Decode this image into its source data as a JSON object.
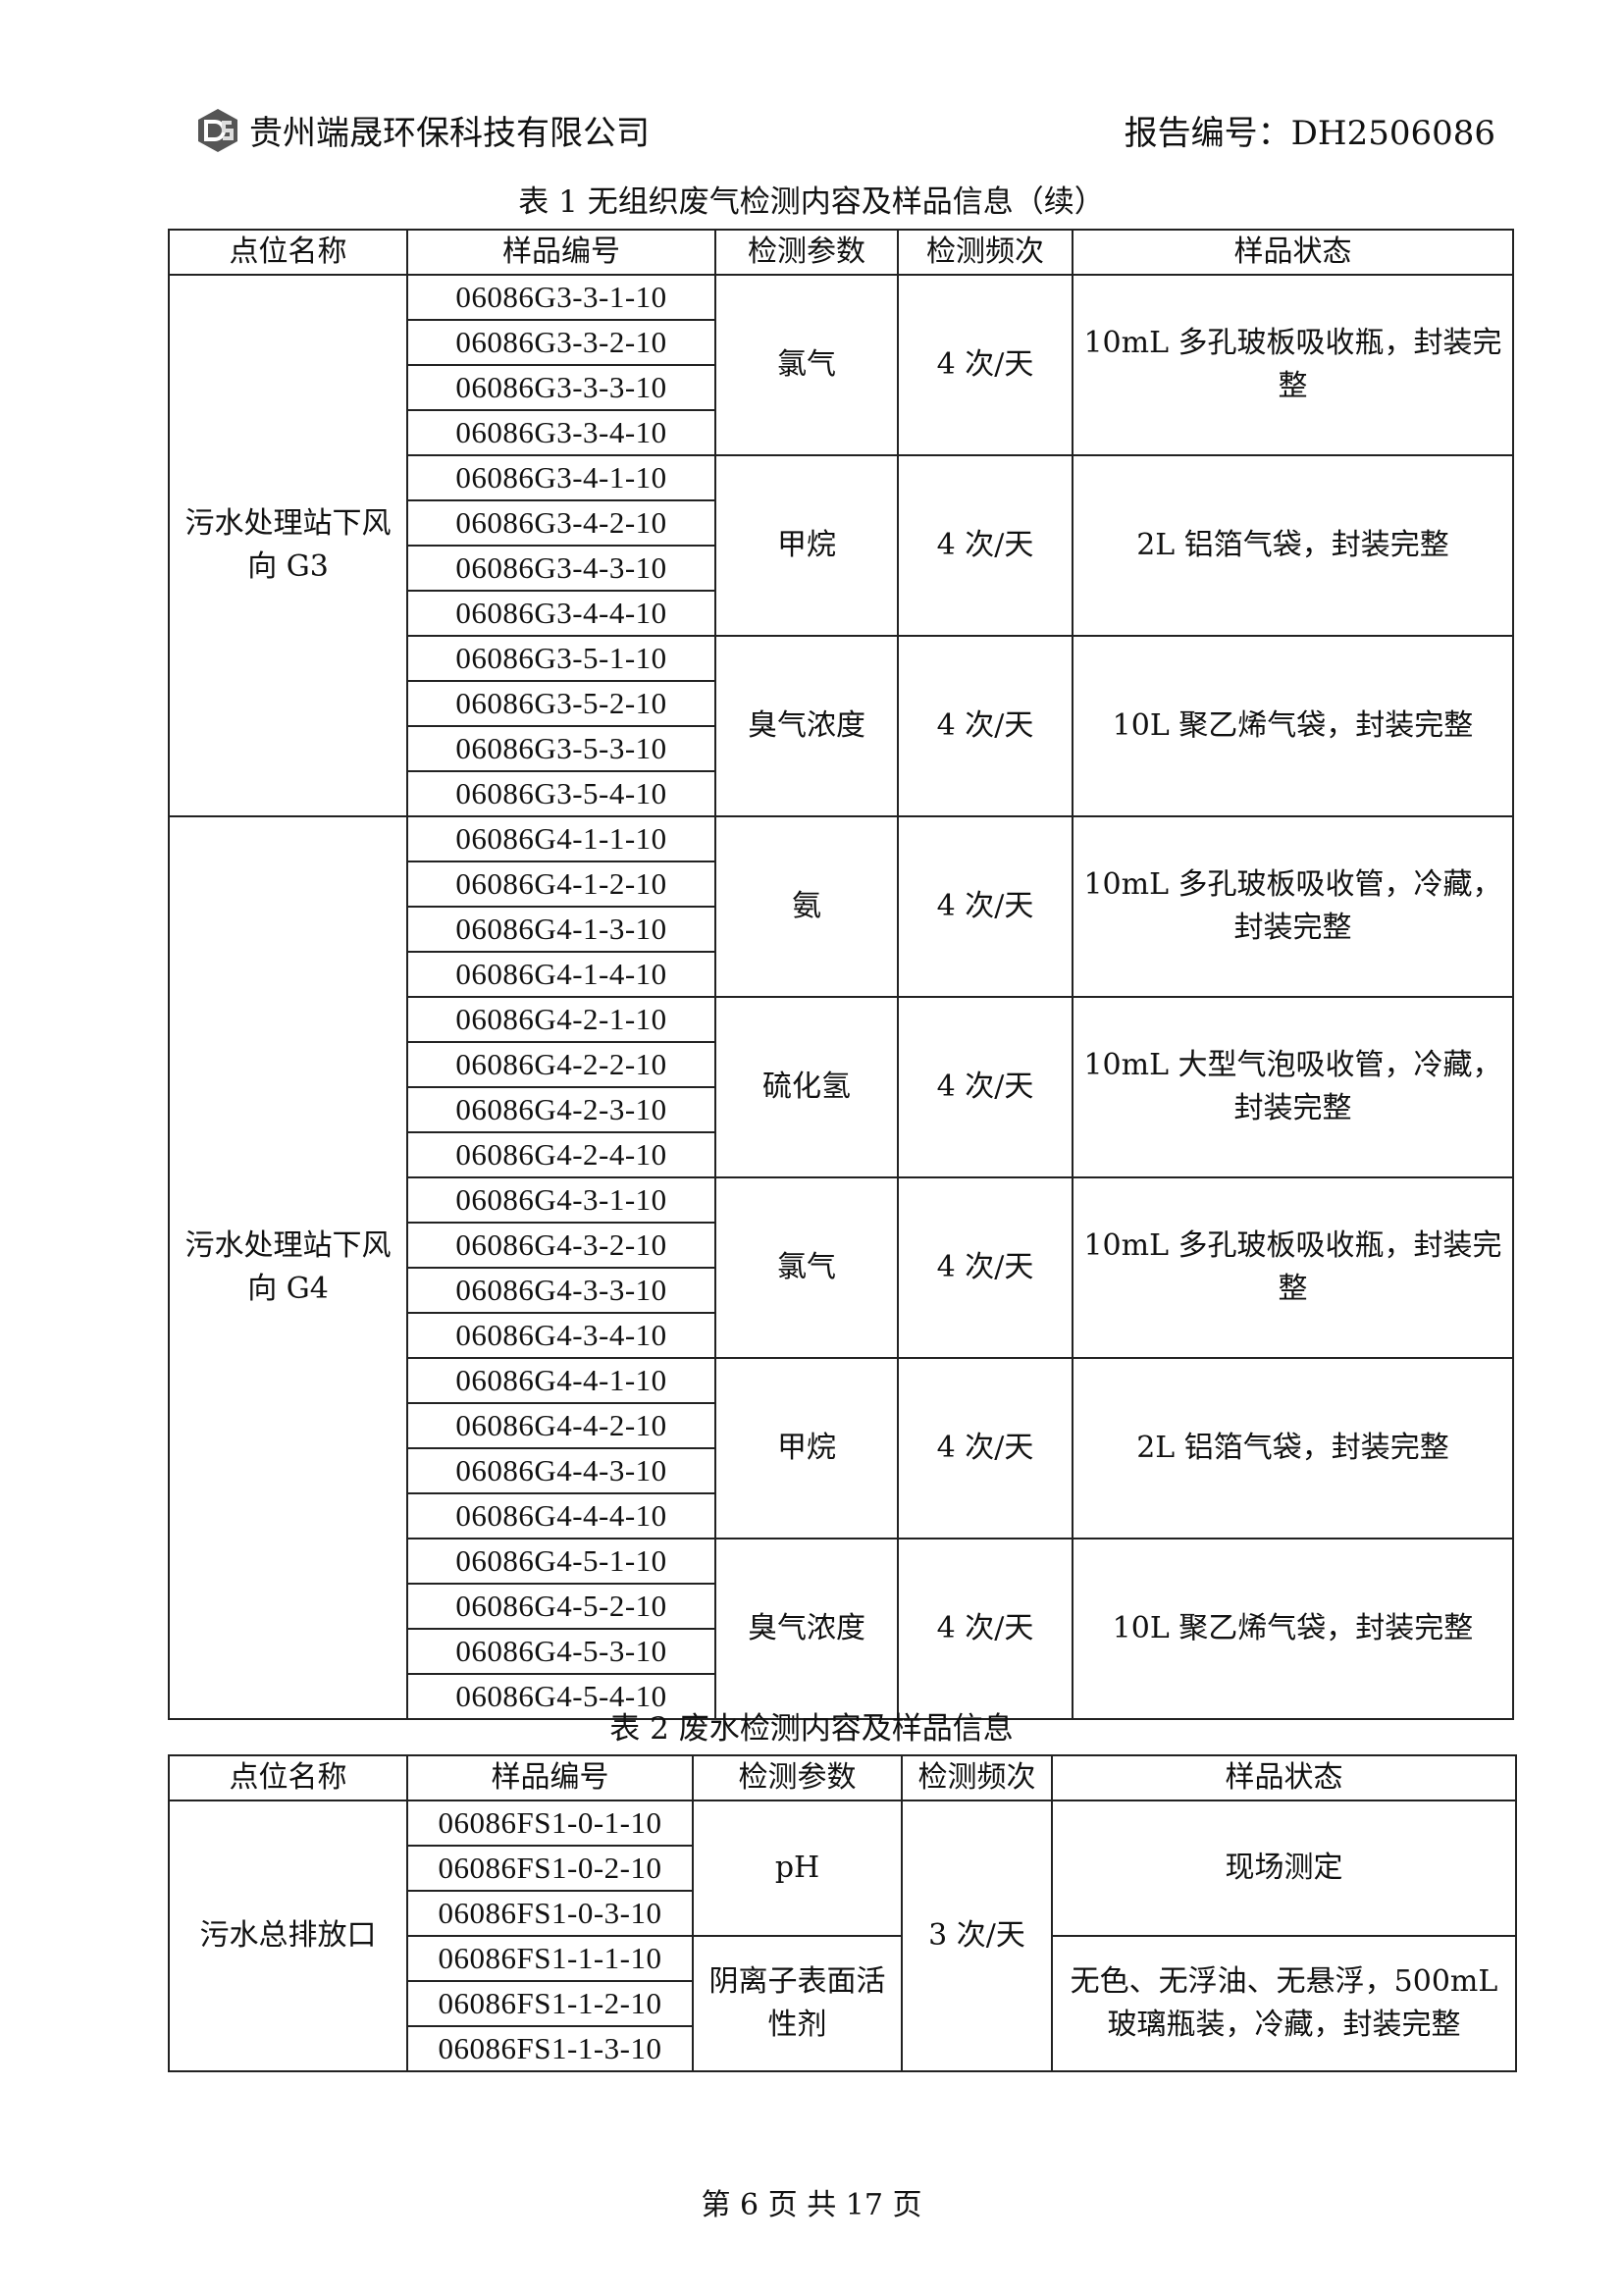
{
  "header": {
    "company": "贵州端晟环保科技有限公司",
    "report_no": "报告编号：DH2506086",
    "logo_icon": "ds-logo-icon"
  },
  "table1": {
    "caption": "表 1 无组织废气检测内容及样品信息（续）",
    "columns": [
      "点位名称",
      "样品编号",
      "检测参数",
      "检测频次",
      "样品状态"
    ],
    "groups": [
      {
        "location": "污水处理站下风向 G3",
        "params": [
          {
            "param": "氯气",
            "freq": "4 次/天",
            "state": "10mL 多孔玻板吸收瓶，封装完整",
            "samples": [
              "06086G3-3-1-10",
              "06086G3-3-2-10",
              "06086G3-3-3-10",
              "06086G3-3-4-10"
            ]
          },
          {
            "param": "甲烷",
            "freq": "4 次/天",
            "state": "2L 铝箔气袋，封装完整",
            "samples": [
              "06086G3-4-1-10",
              "06086G3-4-2-10",
              "06086G3-4-3-10",
              "06086G3-4-4-10"
            ]
          },
          {
            "param": "臭气浓度",
            "freq": "4 次/天",
            "state": "10L 聚乙烯气袋，封装完整",
            "samples": [
              "06086G3-5-1-10",
              "06086G3-5-2-10",
              "06086G3-5-3-10",
              "06086G3-5-4-10"
            ]
          }
        ]
      },
      {
        "location": "污水处理站下风向 G4",
        "params": [
          {
            "param": "氨",
            "freq": "4 次/天",
            "state": "10mL 多孔玻板吸收管，冷藏，封装完整",
            "samples": [
              "06086G4-1-1-10",
              "06086G4-1-2-10",
              "06086G4-1-3-10",
              "06086G4-1-4-10"
            ]
          },
          {
            "param": "硫化氢",
            "freq": "4 次/天",
            "state": "10mL 大型气泡吸收管，冷藏，封装完整",
            "samples": [
              "06086G4-2-1-10",
              "06086G4-2-2-10",
              "06086G4-2-3-10",
              "06086G4-2-4-10"
            ]
          },
          {
            "param": "氯气",
            "freq": "4 次/天",
            "state": "10mL 多孔玻板吸收瓶，封装完整",
            "samples": [
              "06086G4-3-1-10",
              "06086G4-3-2-10",
              "06086G4-3-3-10",
              "06086G4-3-4-10"
            ]
          },
          {
            "param": "甲烷",
            "freq": "4 次/天",
            "state": "2L 铝箔气袋，封装完整",
            "samples": [
              "06086G4-4-1-10",
              "06086G4-4-2-10",
              "06086G4-4-3-10",
              "06086G4-4-4-10"
            ]
          },
          {
            "param": "臭气浓度",
            "freq": "4 次/天",
            "state": "10L 聚乙烯气袋，封装完整",
            "samples": [
              "06086G4-5-1-10",
              "06086G4-5-2-10",
              "06086G4-5-3-10",
              "06086G4-5-4-10"
            ]
          }
        ]
      }
    ]
  },
  "table2": {
    "caption": "表 2 废水检测内容及样品信息",
    "columns": [
      "点位名称",
      "样品编号",
      "检测参数",
      "检测频次",
      "样品状态"
    ],
    "location": "污水总排放口",
    "freq": "3 次/天",
    "params": [
      {
        "param": "pH",
        "state": "现场测定",
        "samples": [
          "06086FS1-0-1-10",
          "06086FS1-0-2-10",
          "06086FS1-0-3-10"
        ]
      },
      {
        "param": "阴离子表面活性剂",
        "state": "无色、无浮油、无悬浮，500mL 玻璃瓶装，冷藏，封装完整",
        "samples": [
          "06086FS1-1-1-10",
          "06086FS1-1-2-10",
          "06086FS1-1-3-10"
        ]
      }
    ]
  },
  "footer": {
    "page": "第 6 页 共 17 页"
  }
}
